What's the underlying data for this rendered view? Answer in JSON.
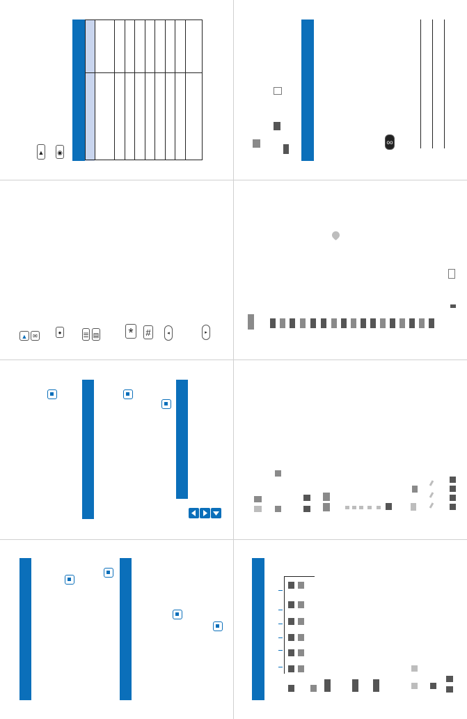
{
  "page": {
    "background": "#ffffff",
    "accent_color": "#0b6fba",
    "table_header_color": "#c9d5ee"
  },
  "keys": {
    "star": "*",
    "hash": "#",
    "menu_a": "☰",
    "menu_b": "▤"
  },
  "icons": [
    "clock-key-icon",
    "camera-key-icon",
    "up-arrow-key-icon",
    "mail-key-icon",
    "record-key-icon",
    "softkey-icon",
    "star-key-icon",
    "hash-key-icon",
    "clear-key-icon",
    "left-arrow-icon",
    "right-arrow-icon",
    "down-arrow-icon",
    "voicemail-icon",
    "battery-icon"
  ]
}
